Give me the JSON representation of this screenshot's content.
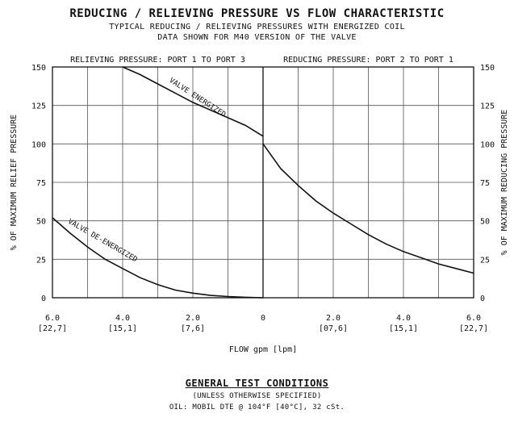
{
  "header": {
    "title": "REDUCING / RELIEVING PRESSURE VS FLOW CHARACTERISTIC",
    "subtitle_1": "TYPICAL REDUCING / RELIEVING PRESSURES WITH ENERGIZED COIL",
    "subtitle_2": "DATA SHOWN FOR M40 VERSION OF THE VALVE"
  },
  "chart_data": {
    "type": "line",
    "x_axis": {
      "label": "FLOW gpm [lpm]",
      "range": [
        -6,
        6
      ],
      "ticks": [
        {
          "value": -6,
          "label": "6.0",
          "sublabel": "[22,7]"
        },
        {
          "value": -4,
          "label": "4.0",
          "sublabel": "[15,1]"
        },
        {
          "value": -2,
          "label": "2.0",
          "sublabel": "[7,6]"
        },
        {
          "value": 0,
          "label": "0",
          "sublabel": ""
        },
        {
          "value": 2,
          "label": "2.0",
          "sublabel": "[07,6]"
        },
        {
          "value": 4,
          "label": "4.0",
          "sublabel": "[15,1]"
        },
        {
          "value": 6,
          "label": "6.0",
          "sublabel": "[22,7]"
        }
      ]
    },
    "y_left": {
      "label": "% OF MAXIMUM RELIEF PRESSURE",
      "range": [
        0,
        150
      ],
      "ticks": [
        0,
        25,
        50,
        75,
        100,
        125,
        150
      ]
    },
    "y_right": {
      "label": "% OF MAXIMUM REDUCING PRESSURE",
      "range": [
        0,
        150
      ],
      "ticks": [
        0,
        25,
        50,
        75,
        100,
        125,
        150
      ]
    },
    "region_labels": {
      "left": "RELIEVING PRESSURE: PORT 1 TO PORT 3",
      "right": "REDUCING PRESSURE: PORT 2 TO PORT 1"
    },
    "grid": true,
    "grid_x_step": 1,
    "grid_y_step": 25,
    "series": [
      {
        "name": "VALVE ENERGIZED",
        "color": "#111111",
        "x": [
          -4.0,
          -3.5,
          -3.0,
          -2.5,
          -2.0,
          -1.5,
          -1.0,
          -0.5,
          0.0
        ],
        "y": [
          150,
          145,
          139,
          133,
          127,
          122,
          117,
          112,
          105
        ]
      },
      {
        "name": "VALVE DE-ENERGIZED",
        "color": "#111111",
        "x": [
          -6.0,
          -5.5,
          -5.0,
          -4.5,
          -4.0,
          -3.5,
          -3.0,
          -2.5,
          -2.0,
          -1.5,
          -1.0,
          -0.5,
          0.0
        ],
        "y": [
          52,
          42,
          33,
          25,
          19,
          13,
          8.5,
          5,
          3,
          1.5,
          0.8,
          0.3,
          0
        ]
      },
      {
        "name": "",
        "color": "#111111",
        "x": [
          0.0,
          0.5,
          1.0,
          1.5,
          2.0,
          2.5,
          3.0,
          3.5,
          4.0,
          4.5,
          5.0,
          5.5,
          6.0
        ],
        "y": [
          100,
          84,
          73,
          63,
          55,
          48,
          41,
          35,
          30,
          26,
          22,
          19,
          16
        ]
      }
    ]
  },
  "test_conditions": {
    "title": "GENERAL TEST CONDITIONS",
    "note": "(UNLESS OTHERWISE SPECIFIED)",
    "oil": "OIL: MOBIL DTE @ 104°F [40°C], 32 cSt."
  }
}
